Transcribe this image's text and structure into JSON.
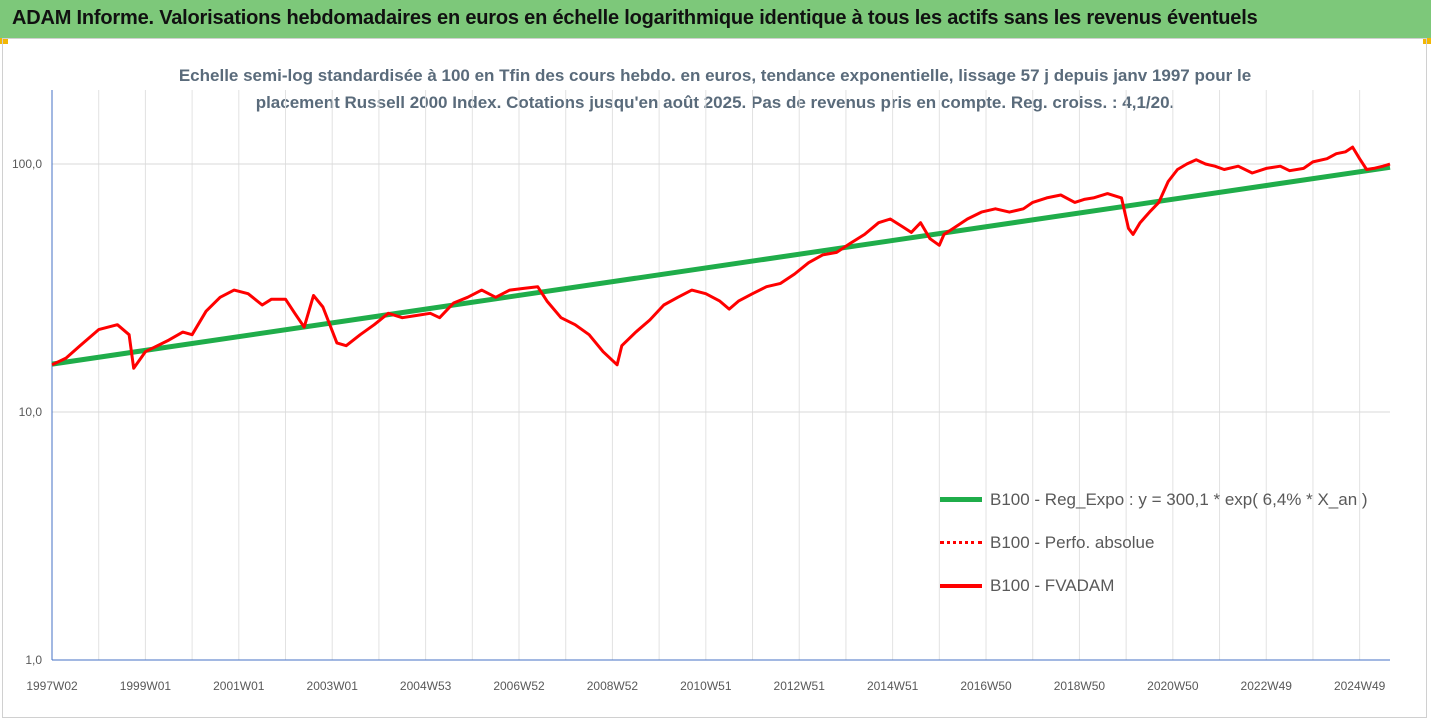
{
  "header": {
    "title": "ADAM Informe. Valorisations hebdomadaires en euros en échelle logarithmique identique à tous les actifs sans les revenus éventuels",
    "banner_color": "#7dc87a"
  },
  "chart_data": {
    "type": "line",
    "title": "Echelle semi-log standardisée à 100 en Tfin des cours hebdo. en euros, tendance exponentielle, lissage 57 j depuis janv 1997 pour le placement Russell 2000 Index. Cotations jusqu'en août 2025. Pas de revenus pris en compte. Reg. croiss. : 4,1/20.",
    "xlabel": "",
    "ylabel": "",
    "y_scale": "log",
    "ylim": [
      1,
      200
    ],
    "xlim": [
      1997.0,
      2025.65
    ],
    "grid": "vertical",
    "legend_position": "lower-right",
    "y_ticks": [
      {
        "value": 1,
        "label": "1,0"
      },
      {
        "value": 10,
        "label": "10,0"
      },
      {
        "value": 100,
        "label": "100,0"
      }
    ],
    "x_ticks": [
      {
        "value": 1997.0,
        "label": "1997W02"
      },
      {
        "value": 1999.0,
        "label": "1999W01"
      },
      {
        "value": 2001.0,
        "label": "2001W01"
      },
      {
        "value": 2003.0,
        "label": "2003W01"
      },
      {
        "value": 2005.0,
        "label": "2004W53"
      },
      {
        "value": 2007.0,
        "label": "2006W52"
      },
      {
        "value": 2009.0,
        "label": "2008W52"
      },
      {
        "value": 2011.0,
        "label": "2010W51"
      },
      {
        "value": 2013.0,
        "label": "2012W51"
      },
      {
        "value": 2015.0,
        "label": "2014W51"
      },
      {
        "value": 2017.0,
        "label": "2016W50"
      },
      {
        "value": 2019.0,
        "label": "2018W50"
      },
      {
        "value": 2021.0,
        "label": "2020W50"
      },
      {
        "value": 2023.0,
        "label": "2022W49"
      },
      {
        "value": 2025.0,
        "label": "2024W49"
      }
    ],
    "series": [
      {
        "name": "B100 - Reg_Expo : y = 300,1 * exp( 6,4% *  X_an )",
        "color": "#1fad4a",
        "style": "solid",
        "x": [
          1997.0,
          2025.65
        ],
        "y": [
          15.6,
          97
        ]
      },
      {
        "name": "B100 - Perfo. absolue",
        "color": "#ff0000",
        "style": "dotted",
        "x": [],
        "y": []
      },
      {
        "name": "B100 - FVADAM",
        "color": "#ff0000",
        "style": "solid",
        "x": [
          1997.0,
          1997.3,
          1997.6,
          1998.0,
          1998.4,
          1998.65,
          1998.75,
          1999.0,
          1999.5,
          1999.8,
          2000.0,
          2000.3,
          2000.6,
          2000.9,
          2001.2,
          2001.5,
          2001.7,
          2002.0,
          2002.2,
          2002.4,
          2002.6,
          2002.8,
          2003.1,
          2003.3,
          2003.6,
          2003.9,
          2004.2,
          2004.5,
          2004.8,
          2005.1,
          2005.3,
          2005.6,
          2005.9,
          2006.2,
          2006.5,
          2006.8,
          2007.1,
          2007.4,
          2007.6,
          2007.9,
          2008.2,
          2008.5,
          2008.8,
          2009.1,
          2009.2,
          2009.5,
          2009.8,
          2010.1,
          2010.4,
          2010.7,
          2011.0,
          2011.3,
          2011.5,
          2011.7,
          2012.0,
          2012.3,
          2012.6,
          2012.9,
          2013.2,
          2013.5,
          2013.8,
          2014.1,
          2014.4,
          2014.7,
          2014.95,
          2015.2,
          2015.4,
          2015.6,
          2015.8,
          2016.0,
          2016.1,
          2016.3,
          2016.6,
          2016.9,
          2017.2,
          2017.5,
          2017.8,
          2018.0,
          2018.3,
          2018.6,
          2018.9,
          2019.1,
          2019.3,
          2019.6,
          2019.9,
          2020.05,
          2020.15,
          2020.3,
          2020.5,
          2020.7,
          2020.9,
          2021.1,
          2021.3,
          2021.5,
          2021.7,
          2021.9,
          2022.1,
          2022.4,
          2022.7,
          2023.0,
          2023.3,
          2023.5,
          2023.8,
          2024.0,
          2024.3,
          2024.5,
          2024.7,
          2024.85,
          2025.0,
          2025.15,
          2025.3,
          2025.5,
          2025.65
        ],
        "y": [
          15.5,
          16.5,
          18.5,
          21.5,
          22.5,
          20.5,
          15.0,
          17.5,
          19.5,
          21.0,
          20.5,
          25.5,
          29.0,
          31.0,
          30.0,
          27.0,
          28.5,
          28.5,
          25.0,
          22.0,
          29.5,
          26.5,
          19.0,
          18.5,
          20.5,
          22.5,
          25.0,
          24.0,
          24.5,
          25.0,
          24.0,
          27.5,
          29.0,
          31.0,
          29.0,
          31.0,
          31.5,
          32.0,
          28.0,
          24.0,
          22.5,
          20.5,
          17.5,
          15.5,
          18.5,
          21.0,
          23.5,
          27.0,
          29.0,
          31.0,
          30.0,
          28.0,
          26.0,
          28.0,
          30.0,
          32.0,
          33.0,
          36.0,
          40.0,
          43.0,
          44.0,
          48.0,
          52.0,
          58.0,
          60.0,
          56.0,
          53.0,
          58.0,
          50.0,
          47.0,
          52.0,
          55.0,
          60.0,
          64.0,
          66.0,
          64.0,
          66.0,
          70.0,
          73.0,
          75.0,
          70.0,
          72.0,
          73.0,
          76.0,
          73.0,
          55.0,
          52.0,
          58.0,
          64.0,
          70.0,
          85.0,
          95.0,
          100.0,
          104.0,
          100.0,
          98.0,
          95.0,
          98.0,
          92.0,
          96.0,
          98.0,
          94.0,
          96.0,
          102.0,
          105.0,
          110.0,
          112.0,
          117.0,
          105.0,
          95.0,
          96.0,
          98.0,
          100.0
        ]
      }
    ]
  }
}
